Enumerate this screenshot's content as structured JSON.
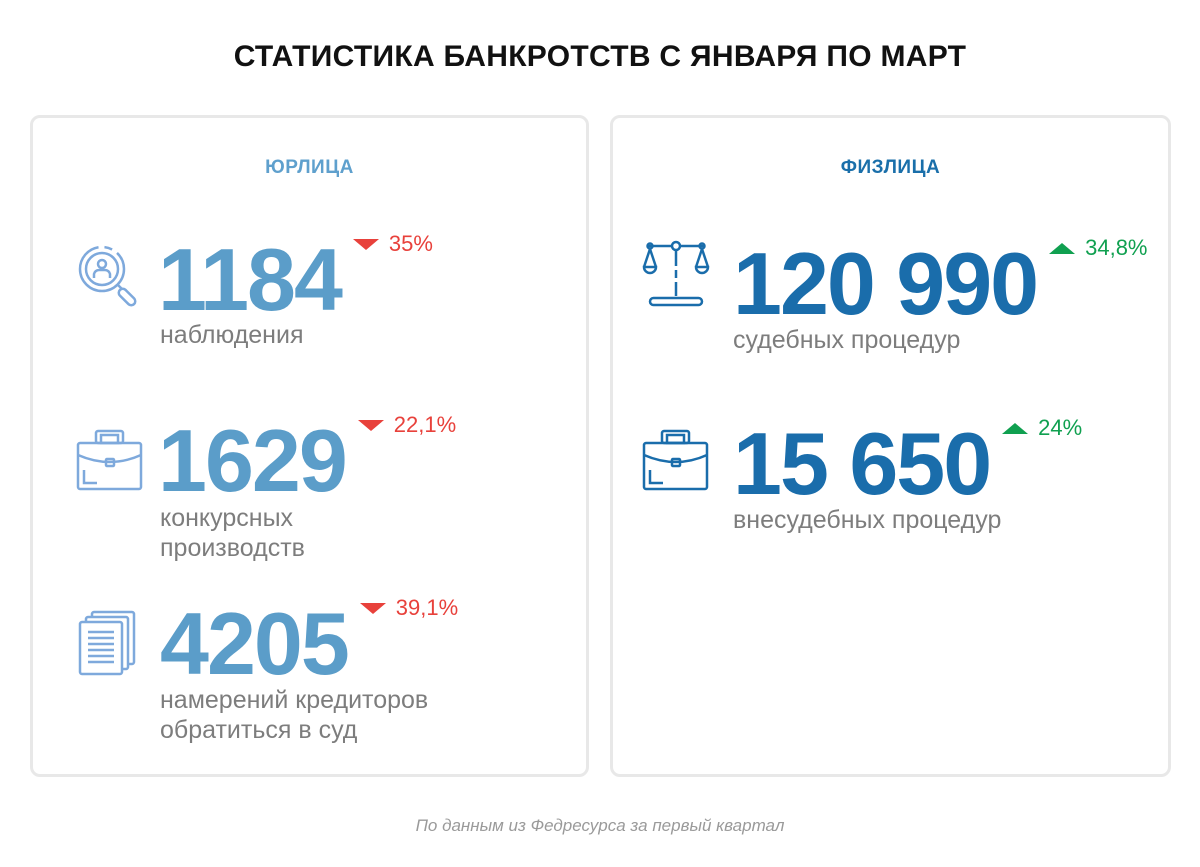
{
  "title": "СТАТИСТИКА БАНКРОТСТВ С ЯНВАРЯ ПО МАРТ",
  "legal": {
    "header": "ЮРЛИЦА",
    "color": "#5b9dc9",
    "items": [
      {
        "icon": "magnifier-person-icon",
        "value": "1184",
        "label": "наблюдения",
        "delta": "35%",
        "direction": "down"
      },
      {
        "icon": "briefcase-icon",
        "value": "1629",
        "label_1": "конкурсных",
        "label_2": "производств",
        "delta": "22,1%",
        "direction": "down"
      },
      {
        "icon": "documents-icon",
        "value": "4205",
        "label_1": "намерений кредиторов",
        "label_2": "обратиться в суд",
        "delta": "39,1%",
        "direction": "down"
      }
    ]
  },
  "individuals": {
    "header": "ФИЗЛИЦА",
    "color": "#1a6dab",
    "items": [
      {
        "icon": "scales-icon",
        "value": "120 990",
        "label": "судебных процедур",
        "delta": "34,8%",
        "direction": "up"
      },
      {
        "icon": "briefcase-icon",
        "value": "15 650",
        "label": "внесудебных процедур",
        "delta": "24%",
        "direction": "up"
      }
    ]
  },
  "colors": {
    "down": "#e8413b",
    "up": "#10a050"
  },
  "footnote": "По данным из Федресурса за первый квартал"
}
